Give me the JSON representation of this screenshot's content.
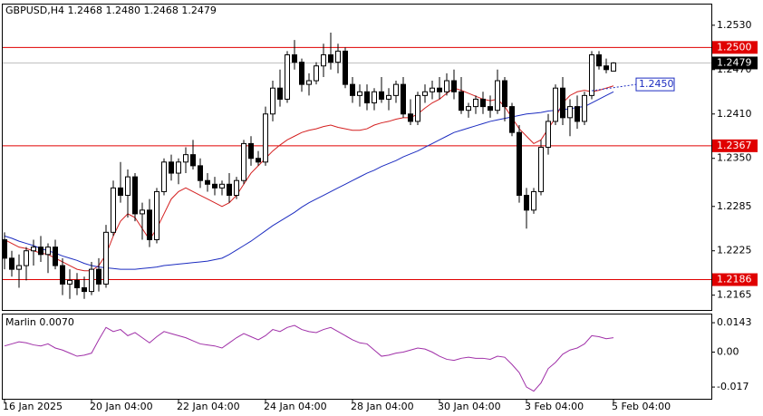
{
  "chart_data": [
    {
      "type": "candlestick",
      "title": "GBPUSD,H4  1.2468 1.2480 1.2468 1.2479",
      "categories": [
        "16 Jan 2025",
        null,
        null,
        null,
        null,
        null,
        null,
        null,
        null,
        null,
        null,
        null,
        "20 Jan 04:00",
        null,
        null,
        null,
        null,
        null,
        null,
        null,
        null,
        null,
        null,
        null,
        "22 Jan 04:00",
        null,
        null,
        null,
        null,
        null,
        null,
        null,
        null,
        null,
        null,
        null,
        "24 Jan 04:00",
        null,
        null,
        null,
        null,
        null,
        null,
        null,
        null,
        null,
        null,
        null,
        "28 Jan 04:00",
        null,
        null,
        null,
        null,
        null,
        null,
        null,
        null,
        null,
        null,
        null,
        "30 Jan 04:00",
        null,
        null,
        null,
        null,
        null,
        null,
        null,
        null,
        null,
        null,
        null,
        "3 Feb 04:00",
        null,
        null,
        null,
        null,
        null,
        null,
        null,
        null,
        null,
        null,
        null,
        "5 Feb 04:00"
      ],
      "open": [
        1.224,
        1.2215,
        1.22,
        1.2205,
        1.2225,
        1.223,
        1.222,
        1.223,
        1.2205,
        1.218,
        1.2185,
        1.2175,
        1.217,
        1.22,
        1.218,
        1.225,
        1.231,
        1.23,
        1.2325,
        1.2275,
        1.228,
        1.224,
        1.2305,
        1.2345,
        1.233,
        1.2345,
        1.2355,
        1.234,
        1.232,
        1.2315,
        1.231,
        1.2315,
        1.23,
        1.232,
        1.237,
        1.235,
        1.2345,
        1.241,
        1.2445,
        1.243,
        1.249,
        1.248,
        1.245,
        1.2455,
        1.2475,
        1.249,
        1.248,
        1.2495,
        1.245,
        1.2435,
        1.244,
        1.2425,
        1.244,
        1.243,
        1.2435,
        1.245,
        1.241,
        1.24,
        1.2435,
        1.244,
        1.2445,
        1.244,
        1.2455,
        1.244,
        1.2415,
        1.242,
        1.243,
        1.242,
        1.2415,
        1.2455,
        1.242,
        1.2385,
        1.23,
        1.228,
        1.2305,
        1.2365,
        1.24,
        1.2445,
        1.2405,
        1.242,
        1.24,
        1.2435,
        1.249,
        1.2475,
        1.2468
      ],
      "high": [
        1.225,
        1.2225,
        1.222,
        1.223,
        1.224,
        1.2245,
        1.2235,
        1.224,
        1.2215,
        1.22,
        1.2195,
        1.219,
        1.221,
        1.2215,
        1.226,
        1.232,
        1.2345,
        1.2335,
        1.233,
        1.229,
        1.2295,
        1.231,
        1.235,
        1.2355,
        1.235,
        1.2365,
        1.2375,
        1.235,
        1.233,
        1.2325,
        1.232,
        1.233,
        1.2325,
        1.2375,
        1.238,
        1.236,
        1.242,
        1.2455,
        1.247,
        1.2495,
        1.251,
        1.2485,
        1.2465,
        1.248,
        1.2505,
        1.252,
        1.2505,
        1.25,
        1.246,
        1.245,
        1.245,
        1.2445,
        1.246,
        1.2445,
        1.2455,
        1.246,
        1.243,
        1.244,
        1.245,
        1.2455,
        1.246,
        1.2465,
        1.247,
        1.246,
        1.2425,
        1.2435,
        1.244,
        1.2435,
        1.247,
        1.246,
        1.2425,
        1.2395,
        1.231,
        1.231,
        1.2375,
        1.241,
        1.245,
        1.246,
        1.243,
        1.2435,
        1.244,
        1.2495,
        1.2495,
        1.2485,
        1.248
      ],
      "low": [
        1.22,
        1.219,
        1.2175,
        1.2185,
        1.2205,
        1.221,
        1.2195,
        1.22,
        1.2165,
        1.216,
        1.2165,
        1.216,
        1.2165,
        1.217,
        1.2175,
        1.2245,
        1.229,
        1.227,
        1.2265,
        1.224,
        1.223,
        1.2235,
        1.23,
        1.232,
        1.2315,
        1.233,
        1.2335,
        1.231,
        1.2305,
        1.23,
        1.23,
        1.229,
        1.2295,
        1.2315,
        1.234,
        1.234,
        1.234,
        1.24,
        1.242,
        1.2425,
        1.247,
        1.244,
        1.2435,
        1.245,
        1.246,
        1.247,
        1.2465,
        1.2445,
        1.2425,
        1.242,
        1.2415,
        1.2415,
        1.2425,
        1.2415,
        1.2425,
        1.2405,
        1.2395,
        1.2395,
        1.2425,
        1.243,
        1.243,
        1.2435,
        1.243,
        1.241,
        1.2405,
        1.241,
        1.241,
        1.2405,
        1.241,
        1.24,
        1.238,
        1.229,
        1.2255,
        1.2275,
        1.23,
        1.2355,
        1.2395,
        1.2395,
        1.238,
        1.239,
        1.2395,
        1.243,
        1.247,
        1.2465,
        1.2468
      ],
      "close": [
        1.2215,
        1.22,
        1.2205,
        1.2225,
        1.223,
        1.222,
        1.223,
        1.2205,
        1.218,
        1.2185,
        1.2175,
        1.217,
        1.22,
        1.218,
        1.225,
        1.231,
        1.23,
        1.2325,
        1.2275,
        1.228,
        1.224,
        1.2305,
        1.2345,
        1.233,
        1.2345,
        1.2355,
        1.234,
        1.232,
        1.2315,
        1.231,
        1.2315,
        1.23,
        1.232,
        1.237,
        1.235,
        1.2345,
        1.241,
        1.2445,
        1.243,
        1.249,
        1.248,
        1.245,
        1.2455,
        1.2475,
        1.249,
        1.248,
        1.2495,
        1.245,
        1.2435,
        1.244,
        1.2425,
        1.244,
        1.243,
        1.2435,
        1.245,
        1.241,
        1.24,
        1.2435,
        1.244,
        1.2445,
        1.244,
        1.2455,
        1.244,
        1.2415,
        1.242,
        1.243,
        1.242,
        1.2415,
        1.2455,
        1.242,
        1.2385,
        1.23,
        1.228,
        1.2305,
        1.2365,
        1.24,
        1.2445,
        1.2405,
        1.242,
        1.24,
        1.2435,
        1.249,
        1.2475,
        1.247,
        1.2479
      ],
      "lines": [
        {
          "color": "#d42020",
          "values": [
            1.224,
            1.2235,
            1.223,
            1.2228,
            1.2225,
            1.2222,
            1.222,
            1.2215,
            1.221,
            1.2205,
            1.22,
            1.2198,
            1.2198,
            1.2205,
            1.222,
            1.2245,
            1.2265,
            1.2275,
            1.227,
            1.2255,
            1.224,
            1.2255,
            1.2275,
            1.2295,
            1.2305,
            1.231,
            1.2305,
            1.23,
            1.2295,
            1.229,
            1.2285,
            1.229,
            1.23,
            1.2315,
            1.233,
            1.234,
            1.235,
            1.236,
            1.2368,
            1.2375,
            1.238,
            1.2385,
            1.2388,
            1.239,
            1.2393,
            1.2395,
            1.2392,
            1.239,
            1.2388,
            1.2388,
            1.239,
            1.2395,
            1.2398,
            1.24,
            1.2403,
            1.2405,
            1.2405,
            1.241,
            1.2418,
            1.2425,
            1.243,
            1.2438,
            1.2445,
            1.2442,
            1.2438,
            1.2434,
            1.243,
            1.2428,
            1.243,
            1.242,
            1.2405,
            1.239,
            1.238,
            1.237,
            1.2375,
            1.239,
            1.2405,
            1.2425,
            1.2435,
            1.244,
            1.2442,
            1.244,
            1.2442,
            1.2445,
            1.2448
          ]
        },
        {
          "color": "#1c2cc0",
          "values": [
            1.2245,
            1.2242,
            1.2238,
            1.2235,
            1.2232,
            1.2228,
            1.2225,
            1.2222,
            1.2218,
            1.2215,
            1.2212,
            1.2208,
            1.2205,
            1.2203,
            1.2202,
            1.2201,
            1.22,
            1.22,
            1.22,
            1.2201,
            1.2202,
            1.2203,
            1.2205,
            1.2206,
            1.2207,
            1.2208,
            1.2209,
            1.221,
            1.2211,
            1.2213,
            1.2215,
            1.222,
            1.2226,
            1.2232,
            1.2238,
            1.2245,
            1.2252,
            1.2259,
            1.2265,
            1.2271,
            1.2277,
            1.2284,
            1.229,
            1.2295,
            1.23,
            1.2305,
            1.231,
            1.2315,
            1.232,
            1.2325,
            1.233,
            1.2334,
            1.2339,
            1.2343,
            1.2347,
            1.2352,
            1.2356,
            1.236,
            1.2365,
            1.237,
            1.2375,
            1.238,
            1.2385,
            1.2388,
            1.2391,
            1.2394,
            1.2397,
            1.24,
            1.2402,
            1.2404,
            1.2406,
            1.2408,
            1.241,
            1.2411,
            1.2412,
            1.2414,
            1.2415,
            1.2416,
            1.2417,
            1.2419,
            1.242,
            1.2425,
            1.243,
            1.2435,
            1.244
          ]
        }
      ],
      "levels": [
        {
          "value": 1.25,
          "label": "1.2500",
          "color": "#e00000"
        },
        {
          "value": 1.2367,
          "label": "1.2367",
          "color": "#e00000"
        },
        {
          "value": 1.2186,
          "label": "1.2186",
          "color": "#e00000"
        }
      ],
      "price_line": {
        "value": 1.2479,
        "label": "1.2479",
        "color": "#000000"
      },
      "trend_label": {
        "value": 1.245,
        "label": "1.2450",
        "color": "#1c2cc0"
      },
      "ylim": [
        1.2145,
        1.2558
      ],
      "yticks": [
        {
          "value": 1.253,
          "label": "1.2530"
        },
        {
          "value": 1.247,
          "label": "1.2470"
        },
        {
          "value": 1.241,
          "label": "1.2410"
        },
        {
          "value": 1.235,
          "label": "1.2350"
        },
        1.2285,
        1.2225,
        1.2165
      ],
      "grid": false
    },
    {
      "type": "line",
      "title": "Marlin 0.0070",
      "color": "#a030a8",
      "values": [
        0.003,
        0.004,
        0.005,
        0.0045,
        0.0035,
        0.003,
        0.004,
        0.002,
        0.001,
        -0.0005,
        -0.002,
        -0.0015,
        -0.0005,
        0.006,
        0.012,
        0.01,
        0.011,
        0.008,
        0.0095,
        0.007,
        0.0045,
        0.0075,
        0.01,
        0.009,
        0.008,
        0.007,
        0.0055,
        0.004,
        0.0035,
        0.003,
        0.002,
        0.0045,
        0.007,
        0.009,
        0.0075,
        0.006,
        0.008,
        0.011,
        0.01,
        0.012,
        0.013,
        0.011,
        0.01,
        0.0095,
        0.011,
        0.012,
        0.01,
        0.008,
        0.006,
        0.0045,
        0.004,
        0.001,
        -0.002,
        -0.0015,
        -0.0005,
        0.0,
        0.001,
        0.002,
        0.0015,
        0.0,
        -0.002,
        -0.0035,
        -0.004,
        -0.003,
        -0.0025,
        -0.003,
        -0.003,
        -0.0035,
        -0.002,
        -0.0025,
        -0.006,
        -0.01,
        -0.017,
        -0.019,
        -0.015,
        -0.008,
        -0.005,
        -0.001,
        0.001,
        0.002,
        0.004,
        0.008,
        0.0075,
        0.0065,
        0.007
      ],
      "ylim": [
        -0.0227,
        0.0183
      ],
      "yticks": [
        0.0143,
        {
          "value": 0,
          "label": "0.00"
        },
        -0.017
      ]
    }
  ]
}
